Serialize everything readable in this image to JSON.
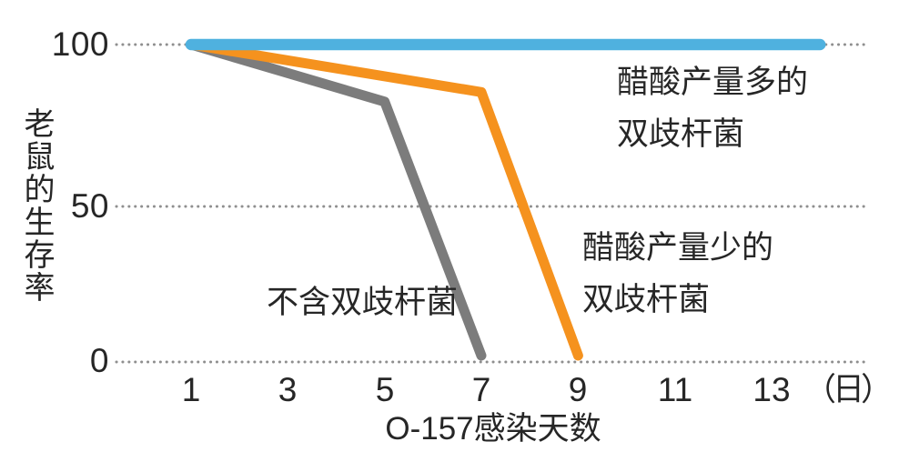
{
  "chart_data": {
    "type": "line",
    "title": "",
    "xlabel": "O-157感染天数",
    "ylabel": "老鼠的生存率",
    "x_unit": "（日）",
    "x_ticks": [
      "1",
      "3",
      "5",
      "7",
      "9",
      "11",
      "13"
    ],
    "x_tick_values": [
      1,
      3,
      5,
      7,
      9,
      11,
      13
    ],
    "y_ticks": [
      "100",
      "50",
      "0"
    ],
    "y_tick_values": [
      100,
      50,
      0
    ],
    "xlim": [
      1,
      14.2
    ],
    "ylim": [
      0,
      100
    ],
    "grid": "horizontal dotted lines at y = 0, 50, 100",
    "legend_position": "inline text annotations next to each line",
    "series": [
      {
        "name": "醋酸产量多的双歧杆菌",
        "color": "#4FB1DF",
        "points": [
          [
            1,
            100
          ],
          [
            14,
            100
          ]
        ]
      },
      {
        "name": "醋酸产量少的双歧杆菌",
        "color": "#F5921E",
        "points": [
          [
            1,
            100
          ],
          [
            7,
            85
          ],
          [
            9,
            2
          ]
        ]
      },
      {
        "name": "不含双歧杆菌",
        "color": "#7C7C7C",
        "points": [
          [
            1,
            100
          ],
          [
            5,
            82
          ],
          [
            7,
            2
          ]
        ]
      }
    ],
    "annotations": [
      {
        "series": "醋酸产量多的双歧杆菌",
        "lines": [
          "醋酸产量多的",
          "双歧杆菌"
        ]
      },
      {
        "series": "醋酸产量少的双歧杆菌",
        "lines": [
          "醋酸产量少的",
          "双歧杆菌"
        ]
      },
      {
        "series": "不含双歧杆菌",
        "lines": [
          "不含双歧杆菌"
        ]
      }
    ],
    "colors": {
      "text": "#262626",
      "grid_dots": "#8F8F8F",
      "background": "#FFFFFF",
      "series_high_acetate": "#4FB1DF",
      "series_low_acetate": "#F5921E",
      "series_none": "#7C7C7C"
    }
  }
}
